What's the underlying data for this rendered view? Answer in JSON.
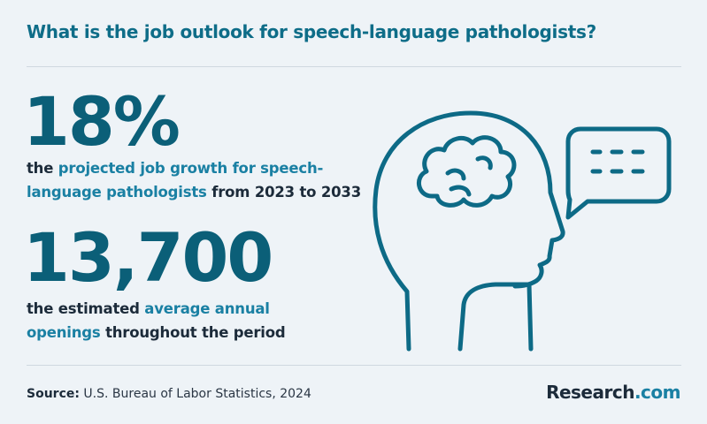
{
  "title": "What is the job outlook for speech-language pathologists?",
  "stats": [
    {
      "value": "18%",
      "description": [
        "the ",
        "projected job growth for speech-language pathologists",
        " from 2023 to 2033"
      ]
    },
    {
      "value": "13,700",
      "description": [
        "the estimated ",
        "average annual openings",
        " throughout the period"
      ]
    }
  ],
  "source": {
    "label": "Source:",
    "text": "U.S. Bureau of Labor Statistics, 2024"
  },
  "brand": {
    "name": "Research",
    "suffix": ".com"
  }
}
